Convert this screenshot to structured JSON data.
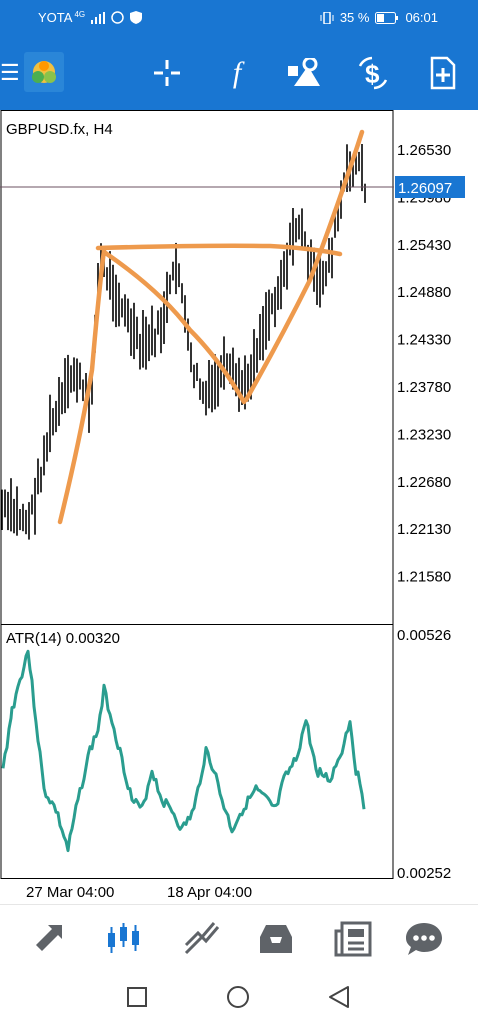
{
  "status": {
    "carrier": "YOTA",
    "network": "4G",
    "battery": "35 %",
    "time": "06:01"
  },
  "toolbar": {
    "icons": [
      "menu-icon",
      "app-logo-icon",
      "crosshair-icon",
      "indicators-icon",
      "objects-icon",
      "symbol-change-icon",
      "new-order-icon"
    ]
  },
  "chart": {
    "symbol_title": "GBPUSD.fx, H4",
    "price_levels": [
      "1.26530",
      "1.25980",
      "1.25430",
      "1.24880",
      "1.24330",
      "1.23780",
      "1.23230",
      "1.22680",
      "1.22130",
      "1.21580"
    ],
    "current_price": "1.26097",
    "indicator_label": "ATR(14) 0.00320",
    "indicator_max": "0.00526",
    "indicator_min": "0.00252",
    "time_labels": [
      "27 Mar 04:00",
      "18 Apr 04:00"
    ],
    "colors": {
      "current_line": "#6b5060",
      "atr": "#2a9d8f",
      "drawing": "#ee9a4d",
      "price_box": "#1976d2"
    }
  },
  "bottom_nav": {
    "items": [
      "quotes-tab",
      "chart-tab",
      "trade-tab",
      "history-tab",
      "news-tab",
      "messages-tab"
    ],
    "active": "chart-tab"
  }
}
